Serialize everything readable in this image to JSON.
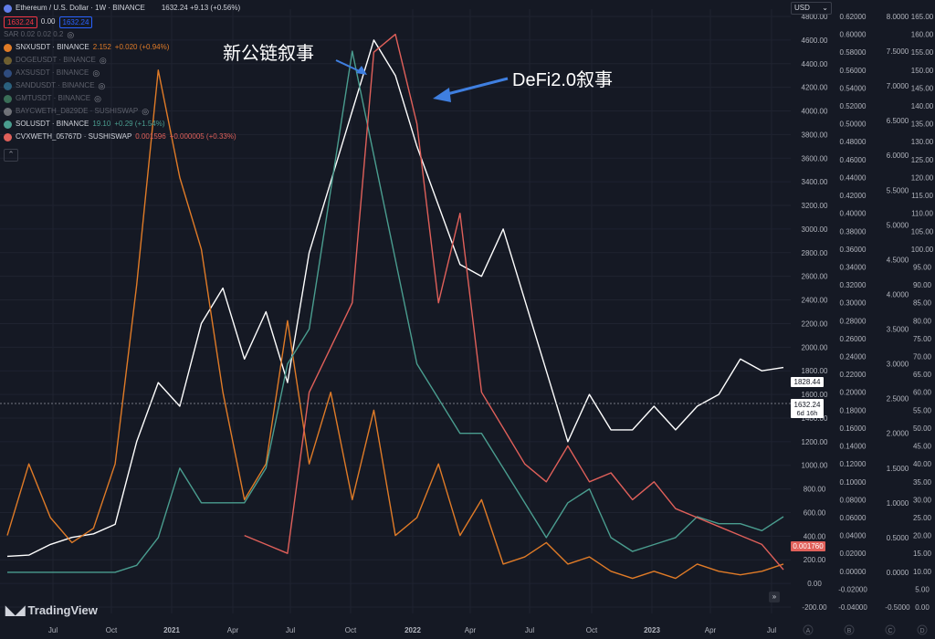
{
  "header": {
    "symbol_title": "Ethereum / U.S. Dollar · 1W · BINANCE",
    "ohlc_summary": "1632.24 +9.13 (+0.56%)",
    "sell_price": "1632.24",
    "spread": "0.00",
    "buy_price": "1632.24",
    "indicator_row": "SAR 0.02 0.02 0.2",
    "currency": "USD"
  },
  "legend": [
    {
      "label": "SNXUSDT · BINANCE",
      "value": "2.152",
      "change": "+0.020 (+0.94%)",
      "color": "#e07b27",
      "muted": false
    },
    {
      "label": "DOGEUSDT · BINANCE",
      "value": "",
      "change": "",
      "color": "#c8a33c",
      "muted": true
    },
    {
      "label": "AXSUSDT · BINANCE",
      "value": "",
      "change": "",
      "color": "#4a7fd8",
      "muted": true
    },
    {
      "label": "SANDUSDT · BINANCE",
      "value": "",
      "change": "",
      "color": "#3fa7d6",
      "muted": true
    },
    {
      "label": "GMTUSDT · BINANCE",
      "value": "",
      "change": "",
      "color": "#5fc48a",
      "muted": true
    },
    {
      "label": "BAYCWETH_D829DE · SUSHISWAP",
      "value": "",
      "change": "",
      "color": "#c9c9c9",
      "muted": true
    },
    {
      "label": "SOLUSDT · BINANCE",
      "value": "19.10",
      "change": "+0.29 (+1.54%)",
      "color": "#4a9d8f",
      "muted": false
    },
    {
      "label": "CVXWETH_05767D · SUSHISWAP",
      "value": "0.001596",
      "change": "+0.000005 (+0.33%)",
      "color": "#e0605a",
      "muted": false
    }
  ],
  "annotations": {
    "new_l1": "新公链叙事",
    "defi2": "DeFi2.0叙事"
  },
  "branding": "TradingView",
  "colors": {
    "eth": "#ffffff",
    "snx": "#e07b27",
    "sol": "#4a9d8f",
    "cvx": "#e0605a",
    "arrow": "#3f7fe0",
    "price_red": "#f23645",
    "price_blue": "#2962ff"
  },
  "chart_data": {
    "type": "line",
    "x_tick_labels": [
      "Jul",
      "Oct",
      "2021",
      "Apr",
      "Jul",
      "Oct",
      "2022",
      "Apr",
      "Jul",
      "Oct",
      "2023",
      "Apr",
      "Jul"
    ],
    "axes": {
      "eth_usd": {
        "ticks": [
          "4800.00",
          "4600.00",
          "4400.00",
          "4200.00",
          "4000.00",
          "3800.00",
          "3600.00",
          "3400.00",
          "3200.00",
          "3000.00",
          "2800.00",
          "2600.00",
          "2400.00",
          "2200.00",
          "2000.00",
          "1800.00",
          "1600.00",
          "1400.00",
          "1200.00",
          "1000.00",
          "800.00",
          "600.00",
          "400.00",
          "200.00",
          "0.00",
          "-200.00"
        ],
        "range": [
          -200,
          4800
        ]
      },
      "cvx_weth": {
        "ticks": [
          "0.62000",
          "0.60000",
          "0.58000",
          "0.56000",
          "0.54000",
          "0.52000",
          "0.50000",
          "0.48000",
          "0.46000",
          "0.44000",
          "0.42000",
          "0.40000",
          "0.38000",
          "0.36000",
          "0.34000",
          "0.32000",
          "0.30000",
          "0.28000",
          "0.26000",
          "0.24000",
          "0.22000",
          "0.20000",
          "0.18000",
          "0.16000",
          "0.14000",
          "0.12000",
          "0.10000",
          "0.08000",
          "0.06000",
          "0.04000",
          "0.02000",
          "0.00000",
          "-0.02000",
          "-0.04000"
        ],
        "range": [
          -0.04,
          0.62
        ]
      },
      "sol_usd": {
        "ticks": [
          "8.0000",
          "7.5000",
          "7.0000",
          "6.5000",
          "6.0000",
          "5.5000",
          "5.0000",
          "4.5000",
          "4.0000",
          "3.5000",
          "3.0000",
          "2.5000",
          "2.0000",
          "1.5000",
          "1.0000",
          "0.5000",
          "0.0000",
          "-0.5000"
        ],
        "range": [
          -0.5,
          8.0
        ]
      },
      "snx_usd": {
        "ticks": [
          "165.00",
          "160.00",
          "155.00",
          "150.00",
          "145.00",
          "140.00",
          "135.00",
          "130.00",
          "125.00",
          "120.00",
          "115.00",
          "110.00",
          "105.00",
          "100.00",
          "95.00",
          "90.00",
          "85.00",
          "80.00",
          "75.00",
          "70.00",
          "65.00",
          "60.00",
          "55.00",
          "50.00",
          "45.00",
          "40.00",
          "35.00",
          "30.00",
          "25.00",
          "20.00",
          "15.00",
          "10.00",
          "5.00",
          "0.00"
        ],
        "range": [
          0,
          165
        ]
      }
    },
    "price_labels": {
      "eth_close": "1828.44",
      "crosshair": "1632.24",
      "countdown": "6d 16h",
      "cvx_last": "0.001760"
    },
    "axis_letters": [
      "A",
      "B",
      "C",
      "D"
    ],
    "x": [
      0,
      1,
      2,
      3,
      4,
      5,
      6,
      7,
      8,
      9,
      10,
      11,
      12,
      13,
      14,
      15,
      16,
      17,
      18,
      19,
      20,
      21,
      22,
      23,
      24,
      25,
      26,
      27,
      28,
      29,
      30,
      31,
      32,
      33,
      34,
      35,
      36
    ],
    "series": [
      {
        "name": "Ethereum / U.S. Dollar",
        "axis": "eth_usd",
        "values": [
          230,
          240,
          330,
          390,
          420,
          500,
          1200,
          1700,
          1500,
          2200,
          2500,
          1900,
          2300,
          1700,
          2800,
          3400,
          4000,
          4600,
          4300,
          3700,
          3200,
          2700,
          2600,
          3000,
          2400,
          1800,
          1200,
          1600,
          1300,
          1300,
          1500,
          1300,
          1500,
          1600,
          1900,
          1800,
          1828
        ]
      },
      {
        "name": "SNXUSDT · BINANCE",
        "axis": "snx_usd",
        "values": [
          20,
          40,
          25,
          18,
          22,
          40,
          90,
          150,
          120,
          100,
          60,
          30,
          40,
          80,
          40,
          60,
          30,
          55,
          20,
          25,
          40,
          20,
          30,
          12,
          14,
          18,
          12,
          14,
          10,
          8,
          10,
          8,
          12,
          10,
          9,
          10,
          12
        ]
      },
      {
        "name": "SOLUSDT · BINANCE",
        "axis": "sol_usd",
        "values": [
          0,
          0,
          0,
          0,
          0,
          0,
          0.1,
          0.5,
          1.5,
          1.0,
          1.0,
          1.0,
          1.5,
          3.0,
          3.5,
          5.5,
          7.5,
          6.0,
          4.5,
          3.0,
          2.5,
          2.0,
          2.0,
          1.5,
          1.0,
          0.5,
          1.0,
          1.2,
          0.5,
          0.3,
          0.4,
          0.5,
          0.8,
          0.7,
          0.7,
          0.6,
          0.8
        ]
      },
      {
        "name": "CVXWETH_05767D · SUSHISWAP",
        "axis": "cvx_weth",
        "values": [
          null,
          null,
          null,
          null,
          null,
          null,
          null,
          null,
          null,
          null,
          null,
          0.04,
          0.03,
          0.02,
          0.2,
          0.25,
          0.3,
          0.58,
          0.6,
          0.5,
          0.3,
          0.4,
          0.2,
          0.16,
          0.12,
          0.1,
          0.14,
          0.1,
          0.11,
          0.08,
          0.1,
          0.07,
          0.06,
          0.05,
          0.04,
          0.03,
          0.00176
        ]
      }
    ]
  }
}
